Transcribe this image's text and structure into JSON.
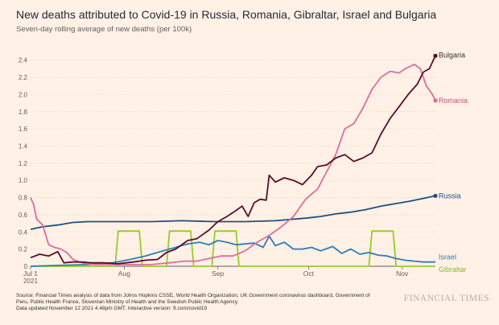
{
  "header": {
    "title": "New deaths attributed to Covid-19 in Russia, Romania, Gibraltar, Israel and Bulgaria",
    "subtitle": "Seven-day rolling average of new deaths (per 100k)"
  },
  "footer": {
    "source_line1": "Source: Financial Times analysis of data from Johns Hopkins CSSE, World Health Organization, UK Government coronavirus dashboard, Government of",
    "source_line2": "Peru, Public Health France, Slovenian Ministry of Health and the Swedish Public Health Agency.",
    "source_line3": "Data updated November 12 2021 4.48pm GMT. Interactive version: ft.com/covid19",
    "brand": "FINANCIAL TIMES"
  },
  "chart_data": {
    "type": "line",
    "title": "New deaths attributed to Covid-19 in Russia, Romania, Gibraltar, Israel and Bulgaria",
    "subtitle": "Seven-day rolling average of new deaths (per 100k)",
    "x_range": [
      "2021-07-01",
      "2021-11-12"
    ],
    "x_ticks": [
      {
        "date": "2021-07-01",
        "label": "Jul 1",
        "sublabel": "2021"
      },
      {
        "date": "2021-08-01",
        "label": "Aug",
        "sublabel": ""
      },
      {
        "date": "2021-09-01",
        "label": "Sep",
        "sublabel": ""
      },
      {
        "date": "2021-10-01",
        "label": "Oct",
        "sublabel": ""
      },
      {
        "date": "2021-11-01",
        "label": "Nov",
        "sublabel": ""
      }
    ],
    "ylim": [
      0,
      2.5
    ],
    "y_ticks": [
      0,
      0.2,
      0.4,
      0.6,
      0.8,
      1.0,
      1.2,
      1.4,
      1.6,
      1.8,
      2.0,
      2.2,
      2.4
    ],
    "y_tick_labels": [
      "0",
      "0.2",
      "0.4",
      "0.6",
      "0.8",
      "1.0",
      "1.2",
      "1.4",
      "1.6",
      "1.8",
      "2.0",
      "2.2",
      "2.4"
    ],
    "grid": true,
    "legend": "direct labels at line ends",
    "series": [
      {
        "name": "Gibraltar",
        "color": "#96cc28",
        "label_color": "#8ab826",
        "points": [
          [
            "2021-07-01",
            0
          ],
          [
            "2021-07-29",
            0
          ],
          [
            "2021-07-30",
            0.41
          ],
          [
            "2021-08-06",
            0.41
          ],
          [
            "2021-08-07",
            0
          ],
          [
            "2021-08-15",
            0
          ],
          [
            "2021-08-16",
            0.41
          ],
          [
            "2021-08-23",
            0.41
          ],
          [
            "2021-08-24",
            0
          ],
          [
            "2021-08-30",
            0
          ],
          [
            "2021-08-31",
            0.41
          ],
          [
            "2021-09-07",
            0.41
          ],
          [
            "2021-09-08",
            0
          ],
          [
            "2021-10-21",
            0
          ],
          [
            "2021-10-22",
            0.41
          ],
          [
            "2021-10-29",
            0.41
          ],
          [
            "2021-10-30",
            0
          ],
          [
            "2021-11-12",
            0
          ]
        ]
      },
      {
        "name": "Israel",
        "color": "#2e7eb6",
        "label_color": "#2e7eb6",
        "points": [
          [
            "2021-07-01",
            0
          ],
          [
            "2021-07-10",
            0.01
          ],
          [
            "2021-07-20",
            0.02
          ],
          [
            "2021-07-28",
            0.04
          ],
          [
            "2021-08-03",
            0.08
          ],
          [
            "2021-08-08",
            0.12
          ],
          [
            "2021-08-13",
            0.17
          ],
          [
            "2021-08-18",
            0.22
          ],
          [
            "2021-08-22",
            0.26
          ],
          [
            "2021-08-26",
            0.28
          ],
          [
            "2021-08-29",
            0.25
          ],
          [
            "2021-09-01",
            0.3
          ],
          [
            "2021-09-04",
            0.28
          ],
          [
            "2021-09-07",
            0.25
          ],
          [
            "2021-09-10",
            0.26
          ],
          [
            "2021-09-13",
            0.27
          ],
          [
            "2021-09-16",
            0.22
          ],
          [
            "2021-09-18",
            0.35
          ],
          [
            "2021-09-20",
            0.24
          ],
          [
            "2021-09-23",
            0.28
          ],
          [
            "2021-09-26",
            0.2
          ],
          [
            "2021-09-29",
            0.2
          ],
          [
            "2021-10-02",
            0.22
          ],
          [
            "2021-10-05",
            0.18
          ],
          [
            "2021-10-09",
            0.23
          ],
          [
            "2021-10-12",
            0.15
          ],
          [
            "2021-10-15",
            0.2
          ],
          [
            "2021-10-18",
            0.14
          ],
          [
            "2021-10-21",
            0.16
          ],
          [
            "2021-10-24",
            0.13
          ],
          [
            "2021-10-27",
            0.12
          ],
          [
            "2021-10-30",
            0.09
          ],
          [
            "2021-11-02",
            0.07
          ],
          [
            "2021-11-05",
            0.06
          ],
          [
            "2021-11-08",
            0.05
          ],
          [
            "2021-11-12",
            0.05
          ]
        ]
      },
      {
        "name": "Russia",
        "color": "#1d4f86",
        "label_color": "#1d4f86",
        "points": [
          [
            "2021-07-01",
            0.43
          ],
          [
            "2021-07-05",
            0.46
          ],
          [
            "2021-07-10",
            0.48
          ],
          [
            "2021-07-15",
            0.51
          ],
          [
            "2021-07-20",
            0.52
          ],
          [
            "2021-07-25",
            0.52
          ],
          [
            "2021-08-01",
            0.52
          ],
          [
            "2021-08-10",
            0.52
          ],
          [
            "2021-08-20",
            0.53
          ],
          [
            "2021-08-31",
            0.52
          ],
          [
            "2021-09-10",
            0.52
          ],
          [
            "2021-09-20",
            0.53
          ],
          [
            "2021-09-30",
            0.56
          ],
          [
            "2021-10-05",
            0.58
          ],
          [
            "2021-10-10",
            0.61
          ],
          [
            "2021-10-15",
            0.63
          ],
          [
            "2021-10-20",
            0.66
          ],
          [
            "2021-10-25",
            0.7
          ],
          [
            "2021-10-30",
            0.73
          ],
          [
            "2021-11-04",
            0.76
          ],
          [
            "2021-11-08",
            0.79
          ],
          [
            "2021-11-12",
            0.82
          ]
        ]
      },
      {
        "name": "Romania",
        "color": "#de6d9c",
        "label_color": "#c9508a",
        "points": [
          [
            "2021-07-01",
            0.8
          ],
          [
            "2021-07-02",
            0.72
          ],
          [
            "2021-07-03",
            0.55
          ],
          [
            "2021-07-05",
            0.48
          ],
          [
            "2021-07-07",
            0.25
          ],
          [
            "2021-07-09",
            0.22
          ],
          [
            "2021-07-11",
            0.2
          ],
          [
            "2021-07-13",
            0.16
          ],
          [
            "2021-07-15",
            0.08
          ],
          [
            "2021-07-18",
            0.04
          ],
          [
            "2021-07-22",
            0.02
          ],
          [
            "2021-07-28",
            0.02
          ],
          [
            "2021-08-03",
            0.02
          ],
          [
            "2021-08-10",
            0.02
          ],
          [
            "2021-08-16",
            0.04
          ],
          [
            "2021-08-21",
            0.06
          ],
          [
            "2021-08-25",
            0.06
          ],
          [
            "2021-08-29",
            0.09
          ],
          [
            "2021-09-02",
            0.12
          ],
          [
            "2021-09-06",
            0.12
          ],
          [
            "2021-09-10",
            0.18
          ],
          [
            "2021-09-14",
            0.28
          ],
          [
            "2021-09-18",
            0.36
          ],
          [
            "2021-09-22",
            0.46
          ],
          [
            "2021-09-26",
            0.58
          ],
          [
            "2021-09-30",
            0.78
          ],
          [
            "2021-10-04",
            0.9
          ],
          [
            "2021-10-07",
            1.1
          ],
          [
            "2021-10-10",
            1.3
          ],
          [
            "2021-10-13",
            1.6
          ],
          [
            "2021-10-16",
            1.66
          ],
          [
            "2021-10-19",
            1.84
          ],
          [
            "2021-10-22",
            2.06
          ],
          [
            "2021-10-25",
            2.2
          ],
          [
            "2021-10-28",
            2.27
          ],
          [
            "2021-10-31",
            2.25
          ],
          [
            "2021-11-02",
            2.3
          ],
          [
            "2021-11-05",
            2.35
          ],
          [
            "2021-11-07",
            2.3
          ],
          [
            "2021-11-09",
            2.1
          ],
          [
            "2021-11-11",
            2.0
          ],
          [
            "2021-11-12",
            1.93
          ]
        ]
      },
      {
        "name": "Bulgaria",
        "color": "#5a0c2e",
        "label_color": "#33302e",
        "points": [
          [
            "2021-07-01",
            0.1
          ],
          [
            "2021-07-04",
            0.14
          ],
          [
            "2021-07-07",
            0.12
          ],
          [
            "2021-07-10",
            0.17
          ],
          [
            "2021-07-12",
            0.04
          ],
          [
            "2021-07-15",
            0.05
          ],
          [
            "2021-07-18",
            0.05
          ],
          [
            "2021-07-21",
            0.04
          ],
          [
            "2021-07-25",
            0.04
          ],
          [
            "2021-07-30",
            0.03
          ],
          [
            "2021-08-04",
            0.05
          ],
          [
            "2021-08-08",
            0.07
          ],
          [
            "2021-08-12",
            0.08
          ],
          [
            "2021-08-15",
            0.16
          ],
          [
            "2021-08-18",
            0.2
          ],
          [
            "2021-08-22",
            0.3
          ],
          [
            "2021-08-25",
            0.32
          ],
          [
            "2021-08-29",
            0.42
          ],
          [
            "2021-09-01",
            0.52
          ],
          [
            "2021-09-04",
            0.58
          ],
          [
            "2021-09-07",
            0.65
          ],
          [
            "2021-09-09",
            0.7
          ],
          [
            "2021-09-11",
            0.58
          ],
          [
            "2021-09-13",
            0.74
          ],
          [
            "2021-09-15",
            0.78
          ],
          [
            "2021-09-17",
            0.77
          ],
          [
            "2021-09-18",
            1.06
          ],
          [
            "2021-09-20",
            0.98
          ],
          [
            "2021-09-23",
            1.03
          ],
          [
            "2021-09-26",
            1.0
          ],
          [
            "2021-09-29",
            0.95
          ],
          [
            "2021-10-02",
            1.06
          ],
          [
            "2021-10-04",
            1.16
          ],
          [
            "2021-10-07",
            1.18
          ],
          [
            "2021-10-10",
            1.26
          ],
          [
            "2021-10-13",
            1.3
          ],
          [
            "2021-10-16",
            1.22
          ],
          [
            "2021-10-19",
            1.26
          ],
          [
            "2021-10-22",
            1.32
          ],
          [
            "2021-10-25",
            1.54
          ],
          [
            "2021-10-28",
            1.72
          ],
          [
            "2021-10-31",
            1.86
          ],
          [
            "2021-11-03",
            2.0
          ],
          [
            "2021-11-06",
            2.12
          ],
          [
            "2021-11-08",
            2.26
          ],
          [
            "2021-11-10",
            2.3
          ],
          [
            "2021-11-12",
            2.45
          ]
        ]
      }
    ]
  }
}
